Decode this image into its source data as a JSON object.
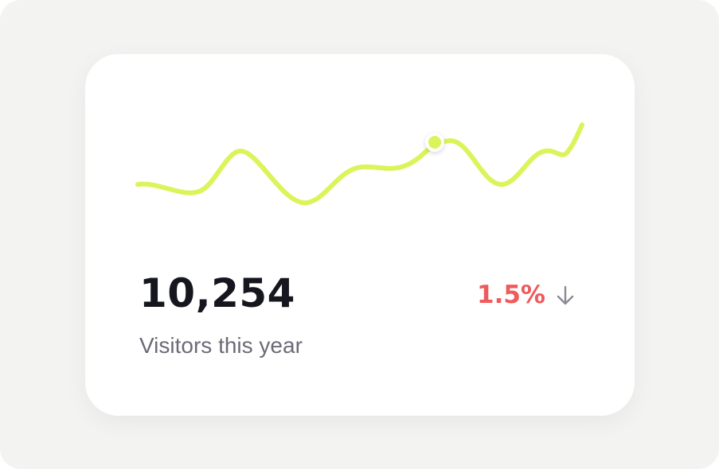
{
  "card": {
    "value": "10,254",
    "label": "Visitors this year",
    "change": "1.5%"
  }
}
